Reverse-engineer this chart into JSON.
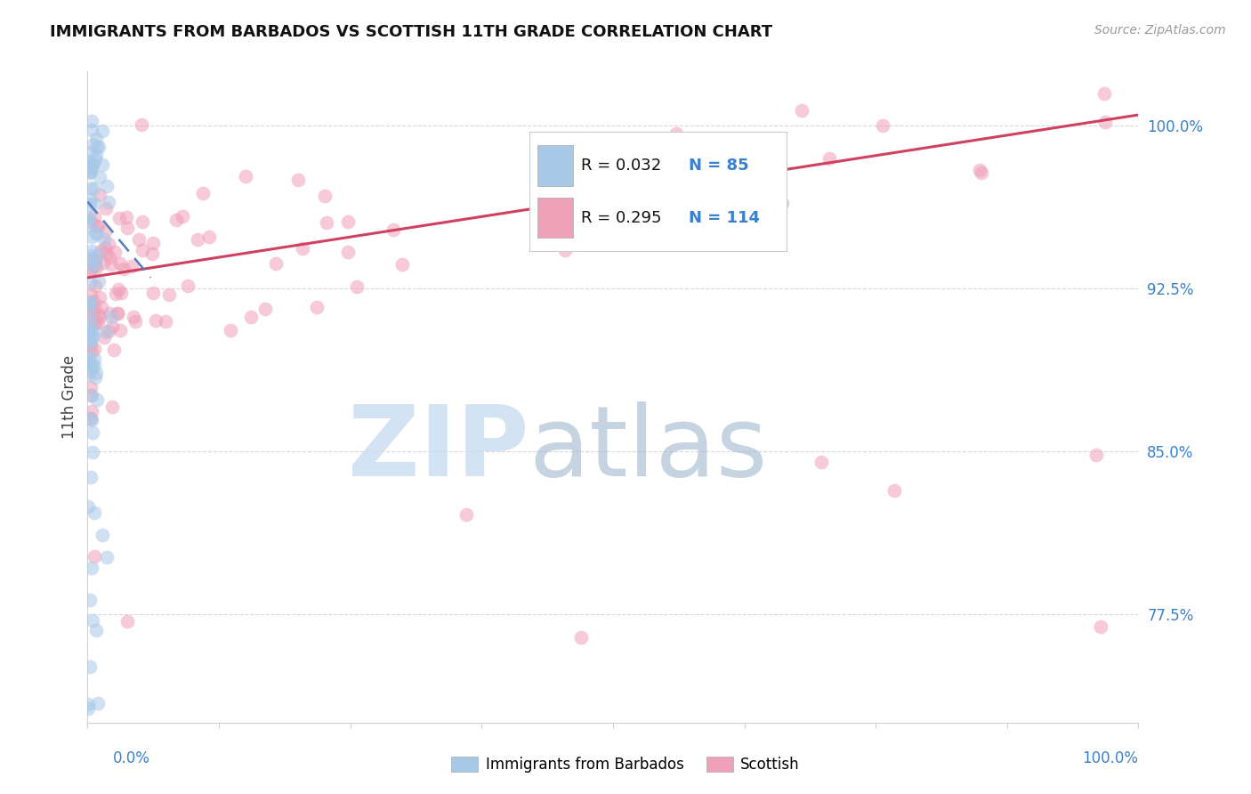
{
  "title": "IMMIGRANTS FROM BARBADOS VS SCOTTISH 11TH GRADE CORRELATION CHART",
  "source": "Source: ZipAtlas.com",
  "ylabel": "11th Grade",
  "y_tick_labels": [
    "77.5%",
    "85.0%",
    "92.5%",
    "100.0%"
  ],
  "y_tick_values": [
    0.775,
    0.85,
    0.925,
    1.0
  ],
  "x_lim": [
    0.0,
    1.0
  ],
  "y_lim": [
    0.725,
    1.025
  ],
  "legend_r1": "R = 0.032",
  "legend_n1": "N = 85",
  "legend_r2": "R = 0.295",
  "legend_n2": "N = 114",
  "blue_color": "#a8c8e8",
  "pink_color": "#f0a0b8",
  "blue_line_color": "#5080c0",
  "pink_line_color": "#d04060",
  "watermark_zip_color": "#c8dcf0",
  "watermark_atlas_color": "#a0b8d0",
  "background_color": "#ffffff",
  "blue_trend_x": [
    0.0,
    0.06
  ],
  "blue_trend_y": [
    0.965,
    0.93
  ],
  "pink_trend_x": [
    0.0,
    1.0
  ],
  "pink_trend_y": [
    0.93,
    1.005
  ]
}
